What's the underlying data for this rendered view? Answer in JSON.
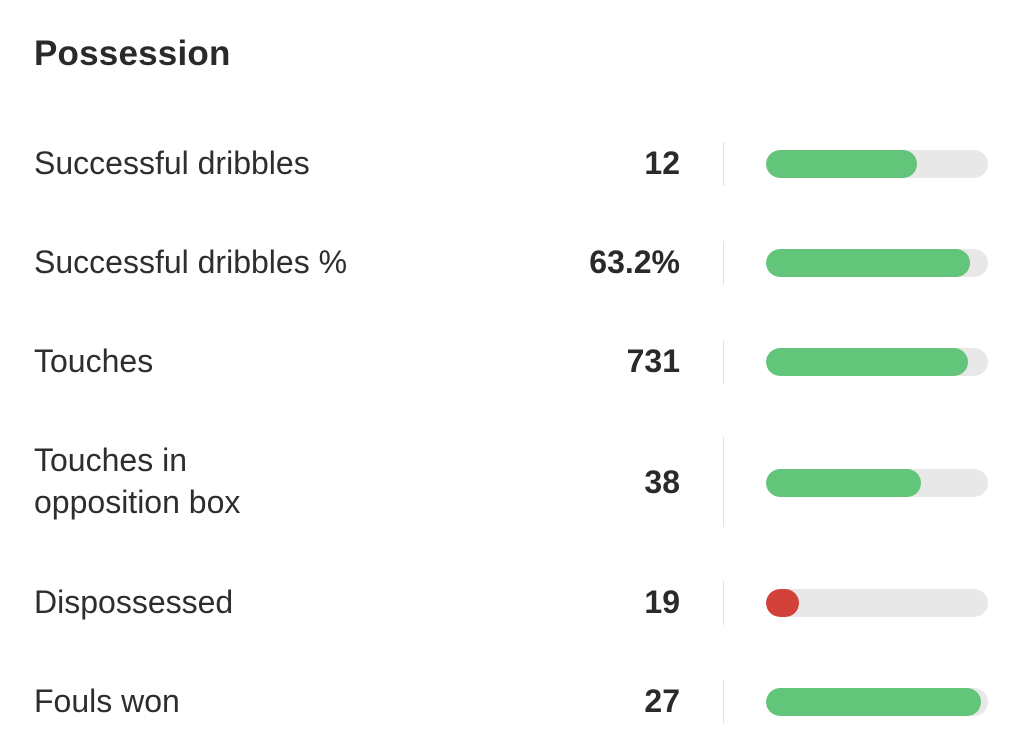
{
  "section": {
    "title": "Possession"
  },
  "colors": {
    "good": "#63c57a",
    "bad": "#d2413a",
    "track": "#e8e8e8"
  },
  "stats": [
    {
      "label": "Successful dribbles",
      "value": "12",
      "fill_fraction": 0.68,
      "status": "good"
    },
    {
      "label": "Successful dribbles %",
      "value": "63.2%",
      "fill_fraction": 0.92,
      "status": "good"
    },
    {
      "label": "Touches",
      "value": "731",
      "fill_fraction": 0.91,
      "status": "good"
    },
    {
      "label": "Touches in opposition box",
      "value": "38",
      "fill_fraction": 0.7,
      "status": "good"
    },
    {
      "label": "Dispossessed",
      "value": "19",
      "fill_fraction": 0.15,
      "status": "bad"
    },
    {
      "label": "Fouls won",
      "value": "27",
      "fill_fraction": 0.97,
      "status": "good"
    }
  ]
}
